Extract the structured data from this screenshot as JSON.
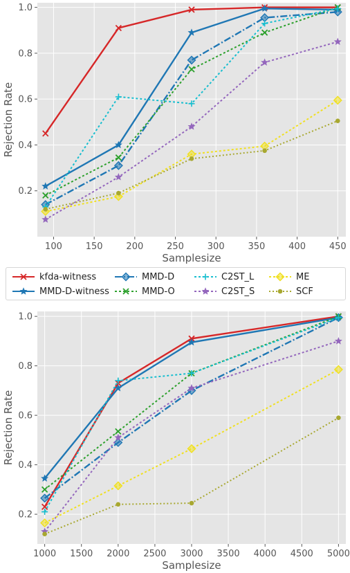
{
  "legend": [
    {
      "name": "kfda-witness",
      "color": "#d62728",
      "dash": "",
      "marker": "x"
    },
    {
      "name": "MMD-D-witness",
      "color": "#1f77b4",
      "dash": "",
      "marker": "star"
    },
    {
      "name": "MMD-D",
      "color": "#1f77b4",
      "dash": "10,3,2,3",
      "marker": "diamond"
    },
    {
      "name": "MMD-O",
      "color": "#2ca02c",
      "dash": "3,3",
      "marker": "x"
    },
    {
      "name": "C2ST_L",
      "color": "#17becf",
      "dash": "3,3",
      "marker": "plus"
    },
    {
      "name": "C2ST_S",
      "color": "#9467bd",
      "dash": "3,3",
      "marker": "star"
    },
    {
      "name": "ME",
      "color": "#f0e020",
      "dash": "3,3",
      "marker": "diamond"
    },
    {
      "name": "SCF",
      "color": "#a8a830",
      "dash": "2,3",
      "marker": "dot"
    }
  ],
  "chart_data": [
    {
      "type": "line",
      "xlabel": "Samplesize",
      "ylabel": "Rejection Rate",
      "xlim": [
        80,
        460
      ],
      "ylim": [
        0.0,
        1.02
      ],
      "xticks": [
        100,
        150,
        200,
        250,
        300,
        350,
        400,
        450
      ],
      "yticks": [
        0.2,
        0.4,
        0.6,
        0.8,
        1.0
      ],
      "grid": true,
      "x": [
        90,
        180,
        270,
        360,
        450
      ],
      "series": [
        {
          "name": "kfda-witness",
          "values": [
            0.45,
            0.91,
            0.99,
            1.0,
            1.0
          ]
        },
        {
          "name": "MMD-D-witness",
          "values": [
            0.22,
            0.4,
            0.89,
            0.995,
            0.99
          ]
        },
        {
          "name": "MMD-D",
          "values": [
            0.14,
            0.31,
            0.77,
            0.955,
            0.98
          ]
        },
        {
          "name": "MMD-O",
          "values": [
            0.18,
            0.345,
            0.73,
            0.89,
            1.0
          ]
        },
        {
          "name": "C2ST_L",
          "values": [
            0.13,
            0.61,
            0.58,
            0.93,
            0.995
          ]
        },
        {
          "name": "C2ST_S",
          "values": [
            0.075,
            0.26,
            0.48,
            0.76,
            0.85
          ]
        },
        {
          "name": "ME",
          "values": [
            0.11,
            0.175,
            0.36,
            0.395,
            0.595
          ]
        },
        {
          "name": "SCF",
          "values": [
            0.12,
            0.19,
            0.34,
            0.375,
            0.505
          ]
        }
      ]
    },
    {
      "type": "line",
      "xlabel": "Samplesize",
      "ylabel": "Rejection Rate",
      "xlim": [
        900,
        5100
      ],
      "ylim": [
        0.08,
        1.02
      ],
      "xticks": [
        1000,
        1500,
        2000,
        2500,
        3000,
        3500,
        4000,
        4500,
        5000
      ],
      "yticks": [
        0.2,
        0.4,
        0.6,
        0.8,
        1.0
      ],
      "grid": true,
      "x": [
        1000,
        2000,
        3000,
        5000
      ],
      "series": [
        {
          "name": "kfda-witness",
          "values": [
            0.23,
            0.73,
            0.91,
            1.0
          ]
        },
        {
          "name": "MMD-D-witness",
          "values": [
            0.345,
            0.71,
            0.895,
            0.995
          ]
        },
        {
          "name": "MMD-D",
          "values": [
            0.265,
            0.49,
            0.7,
            0.995
          ]
        },
        {
          "name": "MMD-O",
          "values": [
            0.3,
            0.535,
            0.77,
            1.0
          ]
        },
        {
          "name": "C2ST_L",
          "values": [
            0.21,
            0.74,
            0.77,
            0.995
          ]
        },
        {
          "name": "C2ST_S",
          "values": [
            0.13,
            0.51,
            0.71,
            0.9
          ]
        },
        {
          "name": "ME",
          "values": [
            0.165,
            0.315,
            0.465,
            0.785
          ]
        },
        {
          "name": "SCF",
          "values": [
            0.12,
            0.24,
            0.245,
            0.59
          ]
        }
      ]
    }
  ]
}
